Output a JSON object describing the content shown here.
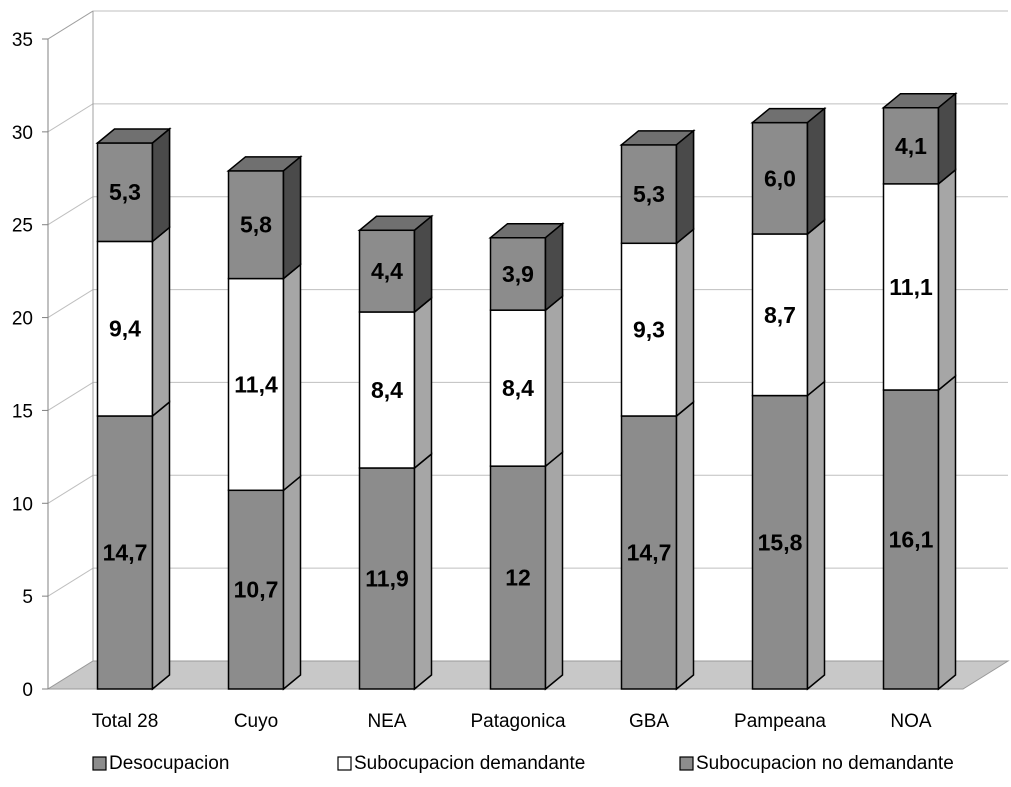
{
  "chart_data": {
    "type": "bar",
    "stacked": true,
    "three_d": true,
    "categories": [
      "Total 28",
      "Cuyo",
      "NEA",
      "Patagonica",
      "GBA",
      "Pampeana",
      "NOA"
    ],
    "series": [
      {
        "name": "Desocupacion",
        "values": [
          14.7,
          10.7,
          11.9,
          12,
          14.7,
          15.8,
          16.1
        ],
        "labels": [
          "14,7",
          "10,7",
          "11,9",
          "12",
          "14,7",
          "15,8",
          "16,1"
        ],
        "color": "#8c8c8c"
      },
      {
        "name": "Subocupacion demandante",
        "values": [
          9.4,
          11.4,
          8.4,
          8.4,
          9.3,
          8.7,
          11.1
        ],
        "labels": [
          "9,4",
          "11,4",
          "8,4",
          "8,4",
          "9,3",
          "8,7",
          "11,1"
        ],
        "color": "#ffffff"
      },
      {
        "name": "Subocupacion no demandante",
        "values": [
          5.3,
          5.8,
          4.4,
          3.9,
          5.3,
          6.0,
          4.1
        ],
        "labels": [
          "5,3",
          "5,8",
          "4,4",
          "3,9",
          "5,3",
          "6,0",
          "4,1"
        ],
        "color": "#8c8c8c"
      }
    ],
    "y_ticks": [
      "0",
      "5",
      "10",
      "15",
      "20",
      "25",
      "30",
      "35"
    ],
    "ylim": [
      0,
      35
    ],
    "grid": true,
    "legend_position": "bottom",
    "colors": {
      "bar": "#8c8c8c",
      "bar_side": "#a6a6a6",
      "bar_top": "#707070",
      "floor": "#c8c8c8",
      "grid": "#bfbfbf"
    }
  }
}
